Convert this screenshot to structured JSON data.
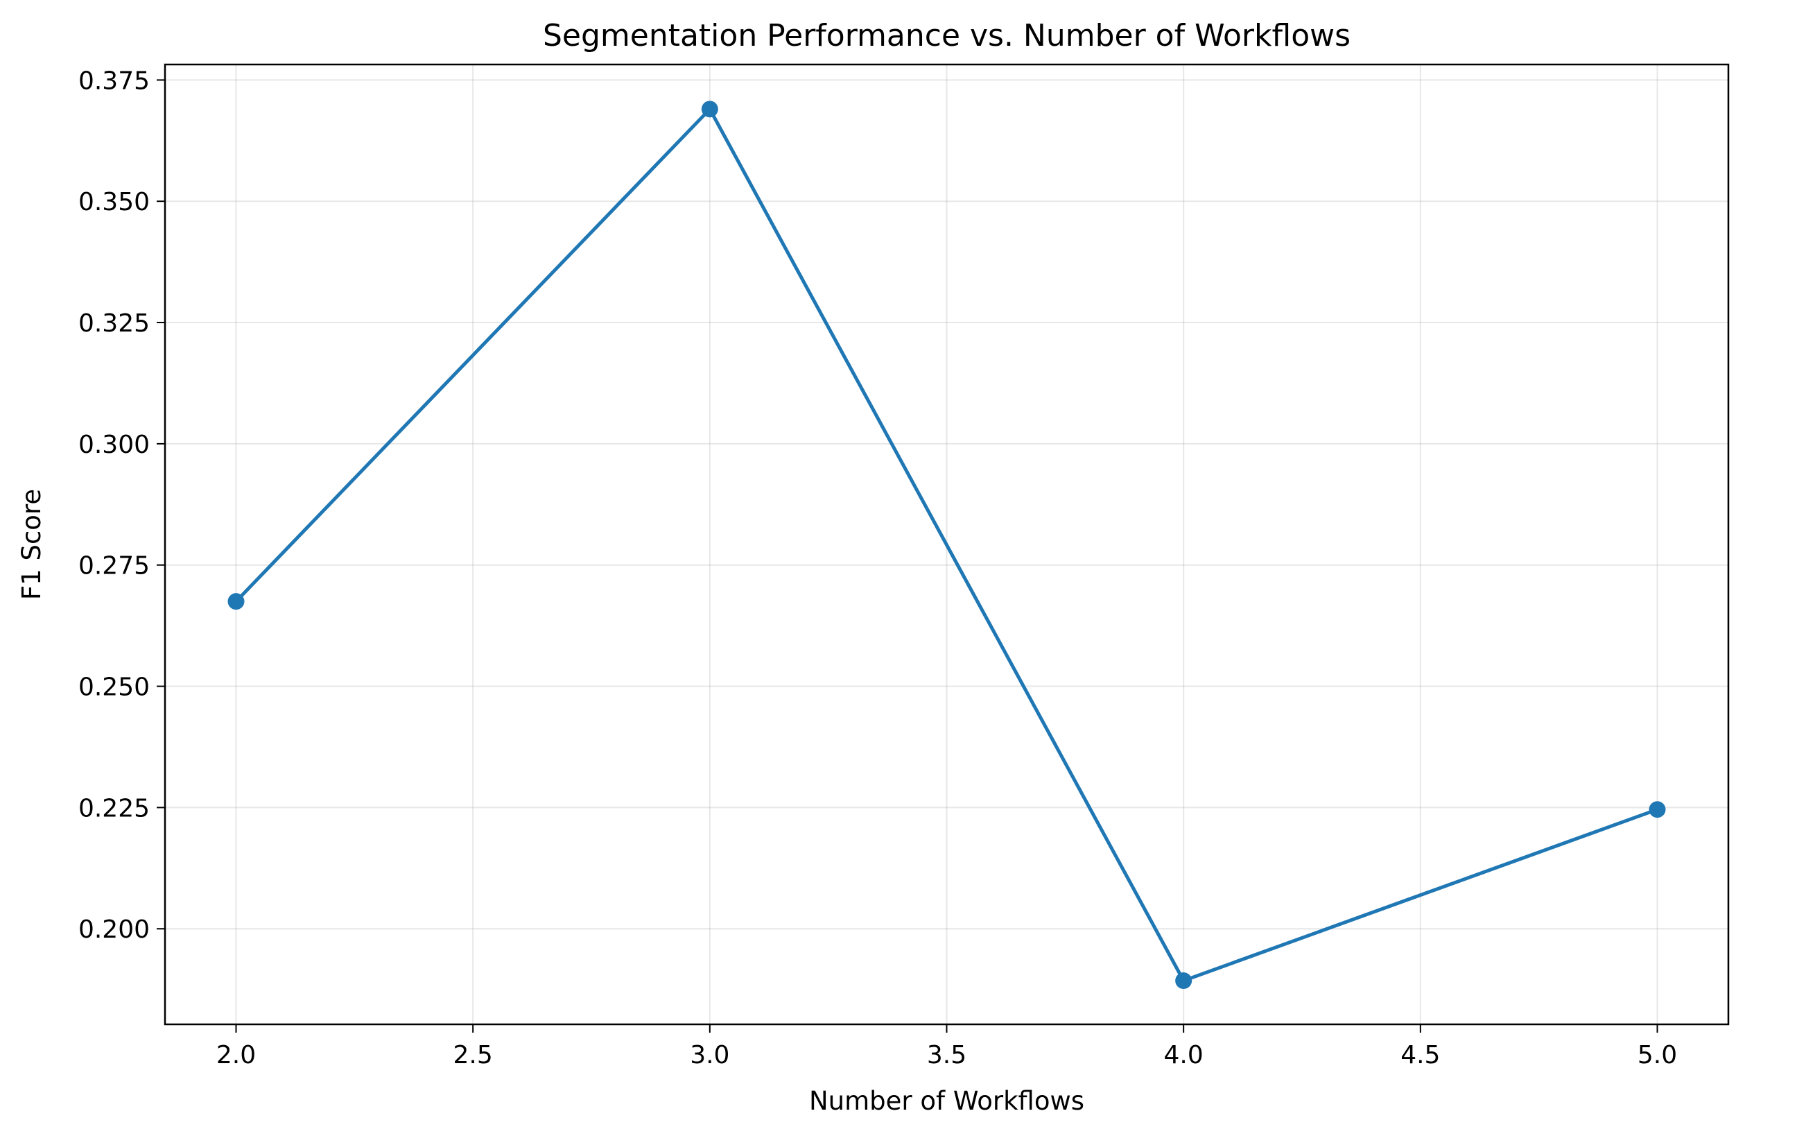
{
  "chart_data": {
    "type": "line",
    "title": "Segmentation Performance vs. Number of Workflows",
    "xlabel": "Number of Workflows",
    "ylabel": "F1 Score",
    "xlim": [
      1.85,
      5.15
    ],
    "ylim": [
      0.1803,
      0.3782
    ],
    "x_ticks": [
      2.0,
      2.5,
      3.0,
      3.5,
      4.0,
      4.5,
      5.0
    ],
    "x_tick_labels": [
      "2.0",
      "2.5",
      "3.0",
      "3.5",
      "4.0",
      "4.5",
      "5.0"
    ],
    "y_ticks": [
      0.2,
      0.225,
      0.25,
      0.275,
      0.3,
      0.325,
      0.35,
      0.375
    ],
    "y_tick_labels": [
      "0.200",
      "0.225",
      "0.250",
      "0.275",
      "0.300",
      "0.325",
      "0.350",
      "0.375"
    ],
    "grid": true,
    "legend": "none",
    "series": [
      {
        "x": [
          2,
          3,
          4,
          5
        ],
        "values": [
          0.2675,
          0.369,
          0.1893,
          0.2246
        ],
        "color": "#1f77b4",
        "marker": "circle"
      }
    ]
  }
}
